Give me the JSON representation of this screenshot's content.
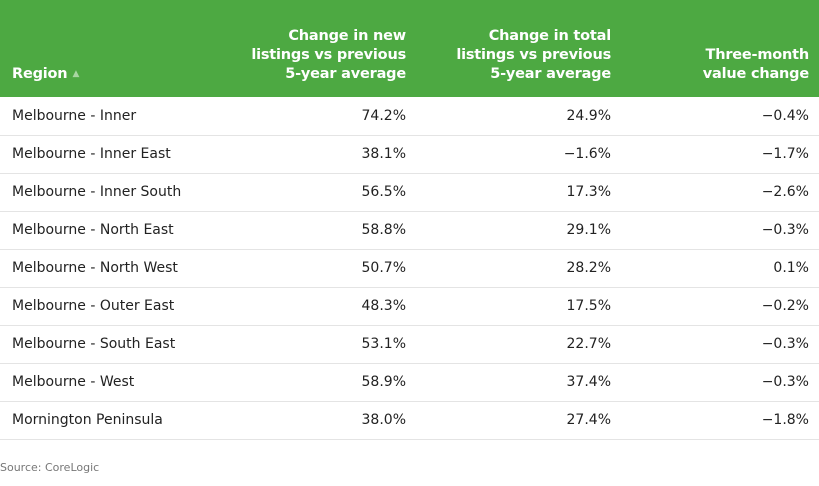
{
  "chart_data": {
    "type": "table",
    "columns": [
      "Region",
      "Change in new listings vs previous 5-year average",
      "Change in total listings vs previous 5-year average",
      "Three-month value change"
    ],
    "header_lines": [
      [
        "Region"
      ],
      [
        "Change in new",
        "listings vs previous",
        "5-year average"
      ],
      [
        "Change in total",
        "listings vs previous",
        "5-year average"
      ],
      [
        "Three-month",
        "value change"
      ]
    ],
    "sort": {
      "column": "Region",
      "direction": "ascending"
    },
    "rows": [
      [
        "Melbourne - Inner",
        "74.2%",
        "24.9%",
        "−0.4%"
      ],
      [
        "Melbourne - Inner East",
        "38.1%",
        "−1.6%",
        "−1.7%"
      ],
      [
        "Melbourne - Inner South",
        "56.5%",
        "17.3%",
        "−2.6%"
      ],
      [
        "Melbourne - North East",
        "58.8%",
        "29.1%",
        "−0.3%"
      ],
      [
        "Melbourne - North West",
        "50.7%",
        "28.2%",
        "0.1%"
      ],
      [
        "Melbourne - Outer East",
        "48.3%",
        "17.5%",
        "−0.2%"
      ],
      [
        "Melbourne - South East",
        "53.1%",
        "22.7%",
        "−0.3%"
      ],
      [
        "Melbourne - West",
        "58.9%",
        "37.4%",
        "−0.3%"
      ],
      [
        "Mornington Peninsula",
        "38.0%",
        "27.4%",
        "−1.8%"
      ]
    ],
    "values": [
      [
        74.2,
        24.9,
        -0.4
      ],
      [
        38.1,
        -1.6,
        -1.7
      ],
      [
        56.5,
        17.3,
        -2.6
      ],
      [
        58.8,
        29.1,
        -0.3
      ],
      [
        50.7,
        28.2,
        0.1
      ],
      [
        48.3,
        17.5,
        -0.2
      ],
      [
        53.1,
        22.7,
        -0.3
      ],
      [
        58.9,
        37.4,
        -0.3
      ],
      [
        38.0,
        27.4,
        -1.8
      ]
    ],
    "source": "Source: CoreLogic"
  },
  "colors": {
    "header_background": "#4da942",
    "header_text": "#ffffff",
    "body_text": "#222222",
    "row_divider": "#e4e4e4",
    "source_text": "#777777"
  },
  "icons": {
    "sort": "sort-ascending-icon"
  }
}
